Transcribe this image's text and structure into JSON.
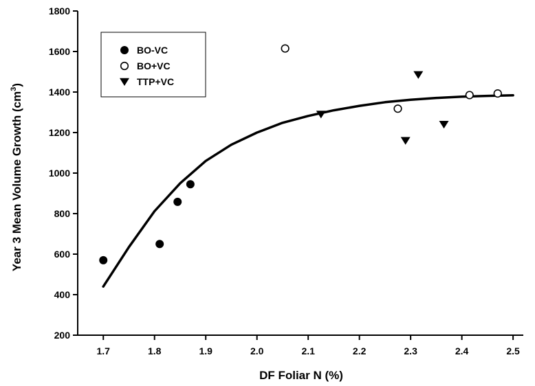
{
  "chart_data": {
    "type": "scatter",
    "xlabel": "DF Foliar N (%)",
    "ylabel_main": "Year 3 Mean Volume Growth (cm",
    "ylabel_sup": "3",
    "ylabel_close": ")",
    "xlim": [
      1.65,
      2.52
    ],
    "ylim": [
      200,
      1800
    ],
    "x_ticks": [
      1.7,
      1.8,
      1.9,
      2.0,
      2.1,
      2.2,
      2.3,
      2.4,
      2.5
    ],
    "x_tick_labels": [
      "1.7",
      "1.8",
      "1.9",
      "2.0",
      "2.1",
      "2.2",
      "2.3",
      "2.4",
      "2.5"
    ],
    "y_ticks": [
      200,
      400,
      600,
      800,
      1000,
      1200,
      1400,
      1600,
      1800
    ],
    "y_tick_labels": [
      "200",
      "400",
      "600",
      "800",
      "1000",
      "1200",
      "1400",
      "1600",
      "1800"
    ],
    "legend_position": "top-left",
    "series": [
      {
        "name": "BO-VC",
        "marker": "filled-circle",
        "points": [
          {
            "x": 1.7,
            "y": 570
          },
          {
            "x": 1.81,
            "y": 650
          },
          {
            "x": 1.845,
            "y": 858
          },
          {
            "x": 1.87,
            "y": 945
          }
        ]
      },
      {
        "name": "BO+VC",
        "marker": "open-circle",
        "points": [
          {
            "x": 2.055,
            "y": 1615
          },
          {
            "x": 2.275,
            "y": 1318
          },
          {
            "x": 2.415,
            "y": 1385
          },
          {
            "x": 2.47,
            "y": 1393
          }
        ]
      },
      {
        "name": "TTP+VC",
        "marker": "filled-triangle-down",
        "points": [
          {
            "x": 2.125,
            "y": 1290
          },
          {
            "x": 2.29,
            "y": 1160
          },
          {
            "x": 2.315,
            "y": 1485
          },
          {
            "x": 2.365,
            "y": 1240
          }
        ]
      }
    ],
    "fit_curve": {
      "x": [
        1.7,
        1.75,
        1.8,
        1.85,
        1.9,
        1.95,
        2.0,
        2.05,
        2.1,
        2.15,
        2.2,
        2.25,
        2.3,
        2.35,
        2.4,
        2.45,
        2.5
      ],
      "y": [
        440,
        635,
        812,
        950,
        1060,
        1140,
        1200,
        1248,
        1282,
        1310,
        1332,
        1350,
        1362,
        1371,
        1377,
        1381,
        1384
      ]
    },
    "colors": {
      "marker": "#000000",
      "curve": "#000000",
      "axis": "#000000"
    }
  }
}
